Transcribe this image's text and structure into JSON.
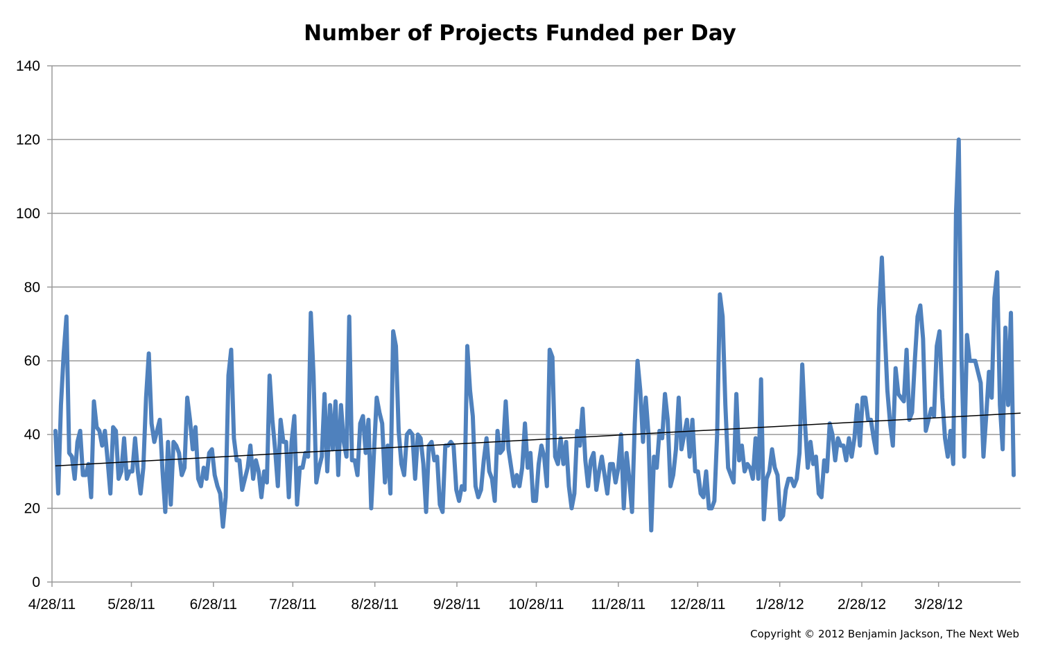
{
  "chart_data": {
    "type": "line",
    "title": "Number of Projects Funded per Day",
    "xlabel": "",
    "ylabel": "",
    "copyright": "Copyright  © 2012 Benjamin Jackson, The Next Web",
    "x_range": [
      "4/28/11",
      "4/28/12"
    ],
    "x_ticks": [
      "4/28/11",
      "5/28/11",
      "6/28/11",
      "7/28/11",
      "8/28/11",
      "9/28/11",
      "10/28/11",
      "11/28/11",
      "12/28/11",
      "1/28/12",
      "2/28/12",
      "3/28/12"
    ],
    "y_ticks": [
      0,
      20,
      40,
      60,
      80,
      100,
      120,
      140
    ],
    "ylim": [
      0,
      140
    ],
    "grid": "horizontal",
    "legend": "none",
    "series": [
      {
        "color": "#4f81bd",
        "start_date": "4/28/11",
        "interval": "1 day",
        "values": [
          41,
          24,
          48,
          62,
          72,
          35,
          34,
          28,
          38,
          41,
          29,
          29,
          32,
          23,
          49,
          42,
          41,
          37,
          41,
          33,
          24,
          42,
          41,
          28,
          30,
          39,
          28,
          30,
          30,
          39,
          30,
          24,
          31,
          50,
          62,
          43,
          38,
          41,
          44,
          30,
          19,
          38,
          21,
          38,
          37,
          35,
          29,
          31,
          50,
          44,
          36,
          42,
          28,
          26,
          31,
          28,
          35,
          36,
          29,
          26,
          24,
          15,
          23,
          56,
          63,
          39,
          33,
          33,
          25,
          28,
          31,
          37,
          28,
          33,
          30,
          23,
          30,
          27,
          56,
          44,
          36,
          26,
          44,
          38,
          38,
          23,
          38,
          45,
          21,
          31,
          31,
          35,
          34,
          73,
          56,
          27,
          31,
          34,
          51,
          30,
          48,
          36,
          49,
          29,
          48,
          38,
          34,
          72,
          33,
          33,
          29,
          43,
          45,
          35,
          44,
          20,
          35,
          50,
          46,
          43,
          27,
          37,
          24,
          68,
          64,
          41,
          32,
          29,
          40,
          41,
          40,
          28,
          40,
          39,
          32,
          19,
          37,
          38,
          33,
          34,
          21,
          19,
          37,
          37,
          38,
          37,
          25,
          22,
          26,
          25,
          64,
          52,
          45,
          26,
          23,
          25,
          33,
          39,
          30,
          28,
          22,
          41,
          35,
          36,
          49,
          36,
          31,
          26,
          29,
          26,
          31,
          43,
          31,
          35,
          22,
          22,
          32,
          37,
          34,
          26,
          63,
          61,
          34,
          32,
          39,
          32,
          38,
          26,
          20,
          24,
          41,
          37,
          47,
          33,
          26,
          33,
          35,
          25,
          30,
          34,
          29,
          24,
          32,
          32,
          27,
          31,
          40,
          20,
          35,
          28,
          19,
          43,
          60,
          52,
          38,
          50,
          40,
          14,
          34,
          31,
          41,
          39,
          51,
          44,
          26,
          29,
          36,
          50,
          36,
          40,
          44,
          34,
          44,
          30,
          30,
          24,
          23,
          30,
          20,
          20,
          22,
          40,
          78,
          72,
          48,
          31,
          29,
          27,
          51,
          33,
          37,
          30,
          32,
          31,
          28,
          39,
          28,
          55,
          17,
          28,
          30,
          36,
          31,
          29,
          17,
          18,
          25,
          28,
          28,
          26,
          28,
          35,
          59,
          43,
          31,
          38,
          32,
          34,
          24,
          23,
          33,
          30,
          43,
          40,
          33,
          39,
          37,
          37,
          33,
          39,
          34,
          39,
          48,
          37,
          50,
          50,
          44,
          44,
          39,
          35,
          74,
          88,
          69,
          52,
          43,
          37,
          58,
          51,
          50,
          49,
          63,
          44,
          46,
          60,
          72,
          75,
          66,
          41,
          44,
          47,
          45,
          64,
          68,
          50,
          39,
          34,
          41,
          32,
          100,
          120,
          61,
          34,
          67,
          60,
          60,
          60,
          57,
          54,
          34,
          45,
          57,
          50,
          77,
          84,
          48,
          36,
          69,
          48,
          73,
          29
        ]
      },
      {
        "name": "trendline",
        "color": "#000000",
        "start": 31.5,
        "end": 45.8
      }
    ]
  }
}
